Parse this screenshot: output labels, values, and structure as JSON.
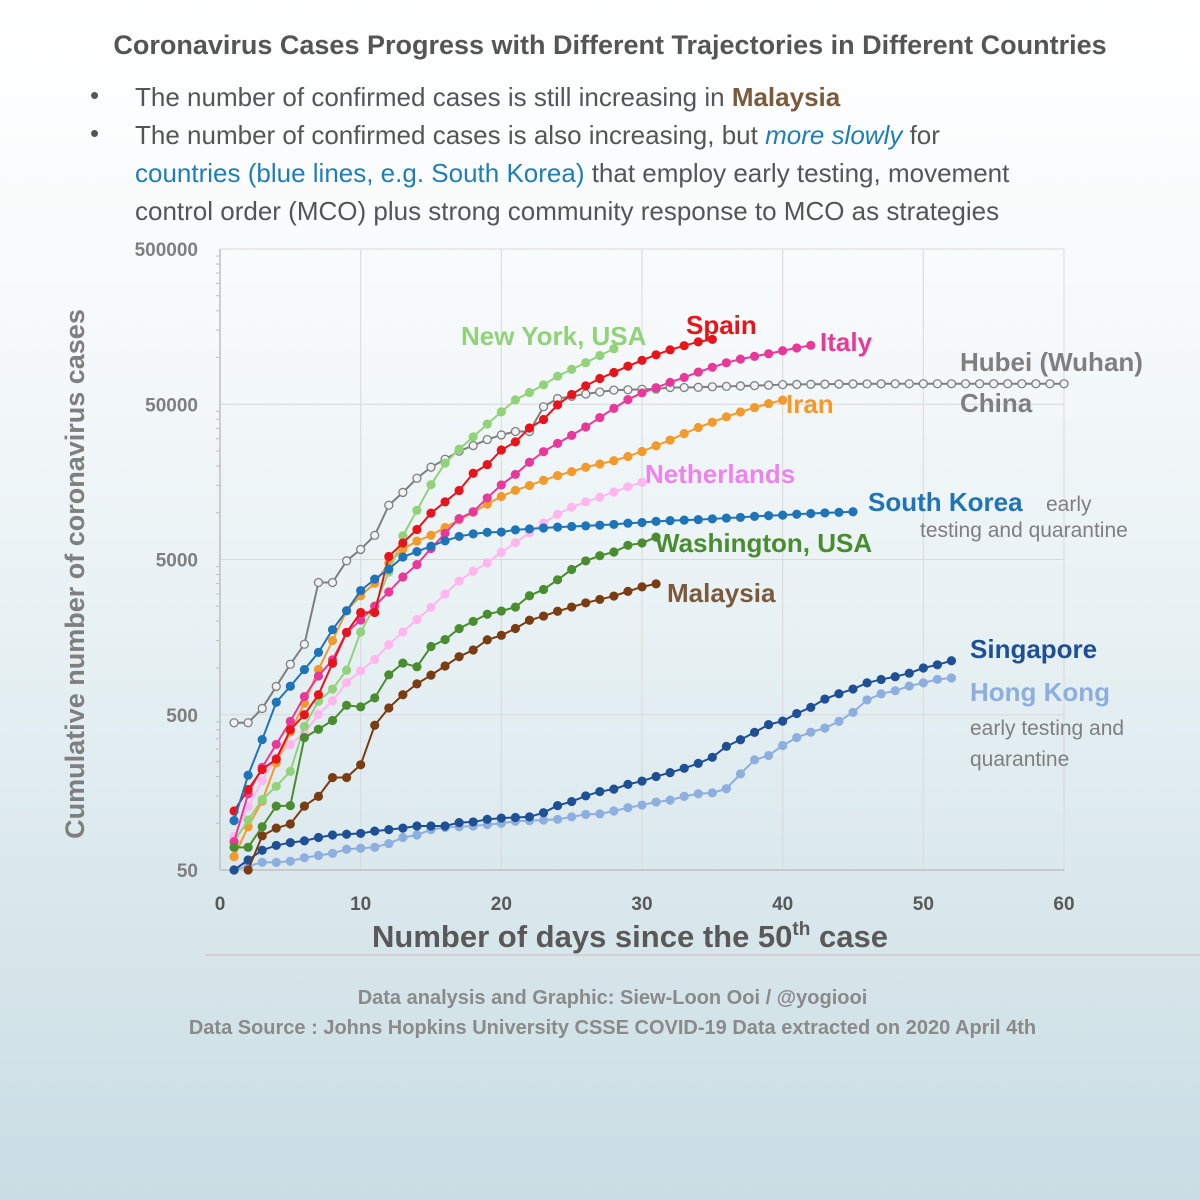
{
  "header": {
    "title": "Coronavirus Cases Progress with Different Trajectories in Different Countries",
    "bullet1_prefix": "The number of confirmed cases is still increasing in ",
    "bullet1_highlight": "Malaysia",
    "bullet2_line1_prefix": "The number of confirmed cases is also increasing, but ",
    "bullet2_line1_highlight": "more slowly",
    "bullet2_line1_suffix": " for",
    "bullet2_line2_highlight": "countries (blue lines, e.g. South Korea)",
    "bullet2_line2_suffix": " that employ early testing, movement",
    "bullet2_line3": "control order (MCO) plus strong community response to MCO as strategies"
  },
  "footer": {
    "credit": "Data analysis and Graphic: Siew-Loon Ooi / @yogiooi",
    "source": "Data Source : Johns Hopkins University CSSE COVID-19 Data extracted on 2020 April 4th"
  },
  "colors": {
    "hubei": "#7f7f7f",
    "new_york": "#92d27a",
    "spain": "#e8141c",
    "italy": "#e8399a",
    "iran": "#f39a2c",
    "netherlands": "#ffb7ee",
    "south_korea": "#1f74b8",
    "washington": "#4a8c30",
    "malaysia": "#7a3c12",
    "singapore": "#1f4f94",
    "hong_kong": "#8eaedf",
    "grid": "#d9d9d9",
    "axis_text": "#7f7f7f"
  },
  "chart_data": {
    "type": "line",
    "xlabel": "Number of days since the 50",
    "xlabel_sup": "th",
    "xlabel_suffix": " case",
    "ylabel": "Cumulative number of coronavirus cases",
    "yscale": "log",
    "xlim": [
      0,
      60
    ],
    "ylim": [
      50,
      500000
    ],
    "xticks": [
      0,
      10,
      20,
      30,
      40,
      50,
      60
    ],
    "yticks": [
      50,
      500,
      5000,
      50000,
      500000
    ],
    "grid": true,
    "annotations": {
      "south_korea_note": "early",
      "south_korea_note2": "testing and quarantine",
      "singapore_hk_note1": "early testing and",
      "singapore_hk_note2": "quarantine"
    },
    "series": [
      {
        "name": "Hubei (Wuhan)",
        "sublabel": "China",
        "key": "hubei",
        "x": [
          1,
          2,
          3,
          4,
          5,
          6,
          7,
          8,
          9,
          10,
          11,
          12,
          13,
          14,
          15,
          16,
          17,
          18,
          19,
          20,
          21,
          22,
          23,
          24,
          25,
          26,
          27,
          28,
          29,
          30,
          31,
          32,
          33,
          34,
          35,
          36,
          37,
          38,
          39,
          40,
          41,
          42,
          43,
          44,
          45,
          46,
          47,
          48,
          49,
          50,
          51,
          52,
          53,
          54,
          55,
          56,
          57,
          58,
          59,
          60
        ],
        "y": [
          444,
          444,
          549,
          761,
          1058,
          1423,
          3554,
          3554,
          4903,
          5806,
          7153,
          11177,
          13522,
          16678,
          19665,
          22112,
          24953,
          27100,
          29631,
          31728,
          33366,
          33366,
          48206,
          54406,
          56249,
          58182,
          59989,
          61682,
          62031,
          62442,
          62662,
          64084,
          64084,
          64287,
          64786,
          65187,
          65596,
          65914,
          66337,
          66907,
          67103,
          67217,
          67332,
          67466,
          67592,
          67666,
          67707,
          67743,
          67760,
          67773,
          67781,
          67786,
          67790,
          67794,
          67798,
          67799,
          67800,
          67800,
          67801,
          67801
        ]
      },
      {
        "name": "New York, USA",
        "key": "new_york",
        "x": [
          1,
          2,
          3,
          4,
          5,
          6,
          7,
          8,
          9,
          10,
          11,
          12,
          13,
          14,
          15,
          16,
          17,
          18,
          19,
          20,
          21,
          22,
          23,
          24,
          25,
          26,
          27,
          28
        ],
        "y": [
          76,
          105,
          142,
          173,
          216,
          421,
          612,
          732,
          967,
          1706,
          2495,
          4152,
          7102,
          10356,
          15168,
          20875,
          25665,
          30811,
          37258,
          44635,
          53363,
          59513,
          66663,
          75833,
          83889,
          92506,
          102987,
          113833
        ]
      },
      {
        "name": "Spain",
        "key": "spain",
        "x": [
          1,
          2,
          3,
          4,
          5,
          6,
          7,
          8,
          9,
          10,
          11,
          12,
          13,
          14,
          15,
          16,
          17,
          18,
          19,
          20,
          21,
          22,
          23,
          24,
          25,
          26,
          27,
          28,
          29,
          30,
          31,
          32,
          33,
          34,
          35
        ],
        "y": [
          120,
          165,
          222,
          259,
          400,
          500,
          673,
          1073,
          1695,
          2277,
          2277,
          5232,
          6391,
          7798,
          9942,
          11748,
          13910,
          17963,
          20410,
          25374,
          28603,
          35136,
          39885,
          49515,
          57786,
          65719,
          73235,
          80110,
          87956,
          95923,
          104118,
          112065,
          119199,
          126168,
          130759
        ]
      },
      {
        "name": "Italy",
        "key": "italy",
        "x": [
          1,
          2,
          3,
          4,
          5,
          6,
          7,
          8,
          9,
          10,
          11,
          12,
          13,
          14,
          15,
          16,
          17,
          18,
          19,
          20,
          21,
          22,
          23,
          24,
          25,
          26,
          27,
          28,
          29,
          30,
          31,
          32,
          33,
          34,
          35,
          36,
          37,
          38,
          39,
          40,
          41,
          42
        ],
        "y": [
          76,
          155,
          229,
          322,
          453,
          655,
          888,
          1128,
          1694,
          2036,
          2502,
          3089,
          3858,
          4636,
          5883,
          7375,
          9172,
          10149,
          12462,
          15113,
          17660,
          21157,
          24747,
          27980,
          31506,
          35713,
          41035,
          47021,
          53578,
          59138,
          63927,
          69176,
          74386,
          80589,
          86498,
          92472,
          97689,
          101739,
          105792,
          110574,
          115242,
          119827
        ]
      },
      {
        "name": "Iran",
        "key": "iran",
        "x": [
          1,
          2,
          3,
          4,
          5,
          6,
          7,
          8,
          9,
          10,
          11,
          12,
          13,
          14,
          15,
          16,
          17,
          18,
          19,
          20,
          21,
          22,
          23,
          24,
          25,
          26,
          27,
          28,
          29,
          30,
          31,
          32,
          33,
          34,
          35,
          36,
          37,
          38,
          39,
          40
        ],
        "y": [
          61,
          95,
          139,
          245,
          388,
          593,
          978,
          1501,
          2336,
          2922,
          3513,
          4747,
          5823,
          6566,
          7161,
          8042,
          9000,
          10075,
          11364,
          12729,
          13938,
          14991,
          16169,
          17361,
          18407,
          19644,
          20610,
          21638,
          23049,
          24811,
          27017,
          29406,
          32332,
          35408,
          38309,
          41495,
          44605,
          47593,
          50468,
          53183
        ]
      },
      {
        "name": "Netherlands",
        "key": "netherlands",
        "x": [
          1,
          2,
          3,
          4,
          5,
          6,
          7,
          8,
          9,
          10,
          11,
          12,
          13,
          14,
          15,
          16,
          17,
          18,
          19,
          20,
          21,
          22,
          23,
          24,
          25,
          26,
          27,
          28,
          29,
          30
        ],
        "y": [
          82,
          128,
          188,
          265,
          321,
          382,
          503,
          614,
          804,
          959,
          1135,
          1413,
          1705,
          2051,
          2460,
          2994,
          3631,
          4204,
          4749,
          5560,
          6412,
          7431,
          8603,
          9762,
          10866,
          11750,
          12595,
          13614,
          14697,
          15723
        ]
      },
      {
        "name": "South Korea",
        "key": "south_korea",
        "x": [
          1,
          2,
          3,
          4,
          5,
          6,
          7,
          8,
          9,
          10,
          11,
          12,
          13,
          14,
          15,
          16,
          17,
          18,
          19,
          20,
          21,
          22,
          23,
          24,
          25,
          26,
          27,
          28,
          29,
          30,
          31,
          32,
          33,
          34,
          35,
          36,
          37,
          38,
          39,
          40,
          41,
          42,
          43,
          44,
          45
        ],
        "y": [
          104,
          204,
          346,
          602,
          763,
          977,
          1261,
          1766,
          2337,
          3150,
          3736,
          4335,
          5186,
          5621,
          6088,
          6593,
          7041,
          7314,
          7478,
          7513,
          7755,
          7869,
          7979,
          8086,
          8162,
          8236,
          8320,
          8413,
          8565,
          8652,
          8799,
          8897,
          8961,
          9037,
          9137,
          9241,
          9332,
          9478,
          9583,
          9661,
          9786,
          9887,
          9976,
          10062,
          10156
        ]
      },
      {
        "name": "Washington, USA",
        "key": "washington",
        "x": [
          1,
          2,
          3,
          4,
          5,
          6,
          7,
          8,
          9,
          10,
          11,
          12,
          13,
          14,
          15,
          16,
          17,
          18,
          19,
          20,
          21,
          22,
          23,
          24,
          25,
          26,
          27,
          28,
          29,
          30,
          31
        ],
        "y": [
          70,
          70,
          95,
          129,
          130,
          356,
          403,
          459,
          575,
          562,
          642,
          904,
          1076,
          1018,
          1376,
          1524,
          1793,
          1996,
          2221,
          2328,
          2469,
          2921,
          3207,
          3700,
          4310,
          4896,
          5292,
          5588,
          6173,
          6389,
          6966
        ]
      },
      {
        "name": "Malaysia",
        "key": "malaysia",
        "x": [
          2,
          3,
          4,
          5,
          6,
          7,
          8,
          9,
          10,
          11,
          12,
          13,
          14,
          15,
          16,
          17,
          18,
          19,
          20,
          21,
          22,
          23,
          24,
          25,
          26,
          27,
          28,
          29,
          30,
          31
        ],
        "y": [
          50,
          83,
          93,
          99,
          129,
          149,
          197,
          197,
          238,
          428,
          553,
          673,
          790,
          900,
          1030,
          1183,
          1306,
          1518,
          1624,
          1796,
          2031,
          2161,
          2320,
          2470,
          2626,
          2766,
          2908,
          3116,
          3333,
          3483
        ]
      },
      {
        "name": "Singapore",
        "key": "singapore",
        "x": [
          1,
          2,
          3,
          4,
          5,
          6,
          7,
          8,
          9,
          10,
          11,
          12,
          13,
          14,
          15,
          16,
          17,
          18,
          19,
          20,
          21,
          22,
          23,
          24,
          25,
          26,
          27,
          28,
          29,
          30,
          31,
          32,
          33,
          34,
          35,
          36,
          37,
          38,
          39,
          40,
          41,
          42,
          43,
          44,
          45,
          46,
          47,
          48,
          49,
          50,
          51,
          52
        ],
        "y": [
          50,
          58,
          67,
          72,
          75,
          77,
          81,
          84,
          85,
          86,
          89,
          91,
          93,
          96,
          96,
          96,
          101,
          102,
          106,
          108,
          109,
          110,
          117,
          130,
          138,
          150,
          160,
          166,
          178,
          187,
          200,
          212,
          226,
          243,
          266,
          313,
          345,
          385,
          432,
          455,
          509,
          558,
          631,
          683,
          732,
          802,
          844,
          879,
          926,
          1000,
          1049,
          1114
        ]
      },
      {
        "name": "Hong Kong",
        "key": "hong_kong",
        "x": [
          1,
          2,
          3,
          4,
          5,
          6,
          7,
          8,
          9,
          10,
          11,
          12,
          13,
          14,
          15,
          16,
          17,
          18,
          19,
          20,
          21,
          22,
          23,
          24,
          25,
          26,
          27,
          28,
          29,
          30,
          31,
          32,
          33,
          34,
          35,
          36,
          37,
          38,
          39,
          40,
          41,
          42,
          43,
          44,
          45,
          46,
          47,
          48,
          49,
          50,
          51,
          52
        ],
        "y": [
          50,
          53,
          56,
          56,
          57,
          60,
          62,
          64,
          68,
          69,
          70,
          74,
          81,
          84,
          91,
          94,
          95,
          96,
          98,
          100,
          103,
          104,
          105,
          106,
          110,
          114,
          115,
          120,
          126,
          131,
          137,
          141,
          149,
          155,
          157,
          167,
          208,
          256,
          273,
          317,
          356,
          386,
          410,
          453,
          518,
          623,
          682,
          714,
          765,
          802,
          845,
          862
        ]
      }
    ]
  }
}
